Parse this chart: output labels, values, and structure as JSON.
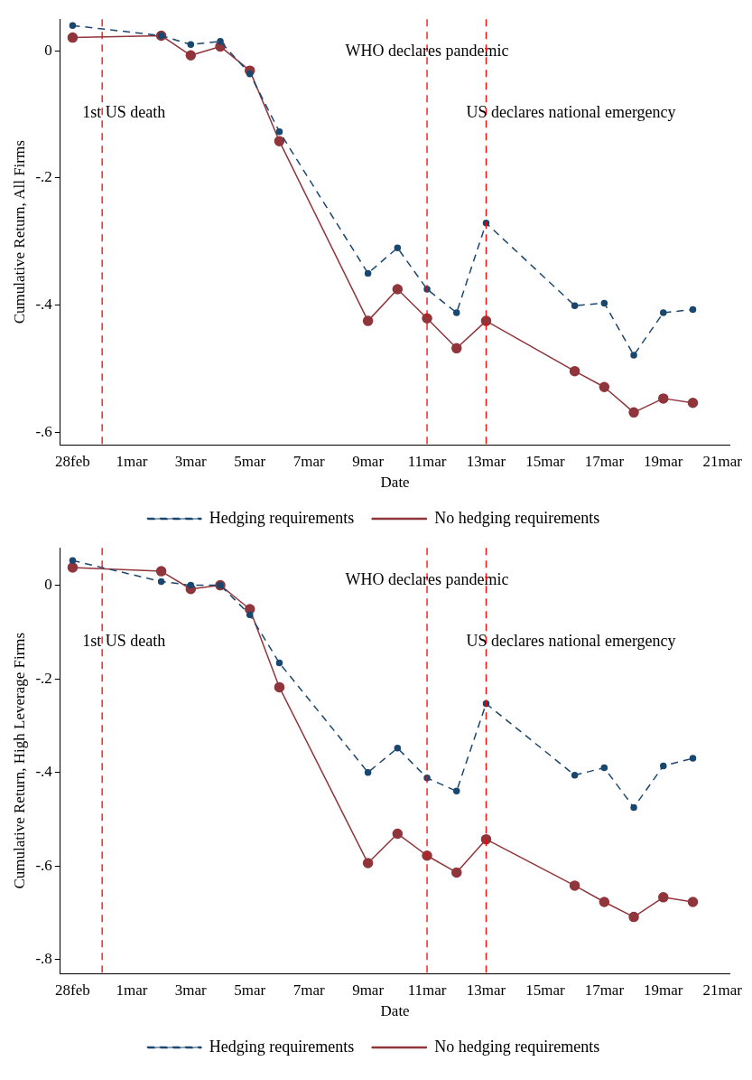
{
  "chart_data": [
    {
      "type": "line",
      "xlabel": "Date",
      "ylabel": "Cumulative Return, All Firms",
      "legend": "bottom",
      "marker": "circle",
      "grid": false,
      "x": [
        "--02-28",
        "--03-02",
        "--03-03",
        "--03-04",
        "--03-05",
        "--03-06",
        "--03-09",
        "--03-10",
        "--03-11",
        "--03-12",
        "--03-13",
        "--03-16",
        "--03-17",
        "--03-18",
        "--03-19",
        "--03-20"
      ],
      "xlim": [
        "--02-27T14:00",
        "--03-21T06:00"
      ],
      "xticks": [
        {
          "value": "--02-28",
          "label": "28feb"
        },
        {
          "value": "--03-01",
          "label": "1mar"
        },
        {
          "value": "--03-03",
          "label": "3mar"
        },
        {
          "value": "--03-05",
          "label": "5mar"
        },
        {
          "value": "--03-07",
          "label": "7mar"
        },
        {
          "value": "--03-09",
          "label": "9mar"
        },
        {
          "value": "--03-11",
          "label": "11mar"
        },
        {
          "value": "--03-13",
          "label": "13mar"
        },
        {
          "value": "--03-15",
          "label": "15mar"
        },
        {
          "value": "--03-17",
          "label": "17mar"
        },
        {
          "value": "--03-19",
          "label": "19mar"
        },
        {
          "value": "--03-21",
          "label": "21mar"
        }
      ],
      "ylim": [
        -0.62,
        0.05
      ],
      "yticks": [
        {
          "value": -0.6,
          "label": "-.6"
        },
        {
          "value": -0.4,
          "label": "-.4"
        },
        {
          "value": -0.2,
          "label": "-.2"
        },
        0
      ],
      "ref_lines": [
        {
          "axis": "x",
          "value": "--02-29",
          "label": "1st US death",
          "color": "#ff0000",
          "line_style": "dashed"
        },
        {
          "axis": "x",
          "value": "--03-11",
          "label": "WHO declares pandemic",
          "color": "#ff0000",
          "line_style": "dashed"
        },
        {
          "axis": "x",
          "value": "--03-13",
          "label": "US declares national emergency",
          "color": "#ff0000",
          "line_style": "dashed"
        }
      ],
      "series": [
        {
          "name": "Hedging requirements",
          "color": "#1a476f",
          "line_style": "dashed",
          "values": [
            0.04,
            0.024,
            0.01,
            0.015,
            -0.036,
            -0.127,
            -0.35,
            -0.31,
            -0.375,
            -0.412,
            -0.271,
            -0.401,
            -0.397,
            -0.479,
            -0.412,
            -0.407
          ]
        },
        {
          "name": "No hedging requirements",
          "color": "#90353b",
          "line_style": "solid",
          "values": [
            0.021,
            0.024,
            -0.007,
            0.007,
            -0.031,
            -0.142,
            -0.425,
            -0.375,
            -0.421,
            -0.468,
            -0.425,
            -0.504,
            -0.529,
            -0.569,
            -0.547,
            -0.554
          ]
        }
      ]
    },
    {
      "type": "line",
      "xlabel": "Date",
      "ylabel": "Cumulative Return, High Leverage Firms",
      "legend": "bottom",
      "marker": "circle",
      "grid": false,
      "x": [
        "--02-28",
        "--03-02",
        "--03-03",
        "--03-04",
        "--03-05",
        "--03-06",
        "--03-09",
        "--03-10",
        "--03-11",
        "--03-12",
        "--03-13",
        "--03-16",
        "--03-17",
        "--03-18",
        "--03-19",
        "--03-20"
      ],
      "xlim": [
        "--02-27T14:00",
        "--03-21T06:00"
      ],
      "xticks": [
        {
          "value": "--02-28",
          "label": "28feb"
        },
        {
          "value": "--03-01",
          "label": "1mar"
        },
        {
          "value": "--03-03",
          "label": "3mar"
        },
        {
          "value": "--03-05",
          "label": "5mar"
        },
        {
          "value": "--03-07",
          "label": "7mar"
        },
        {
          "value": "--03-09",
          "label": "9mar"
        },
        {
          "value": "--03-11",
          "label": "11mar"
        },
        {
          "value": "--03-13",
          "label": "13mar"
        },
        {
          "value": "--03-15",
          "label": "15mar"
        },
        {
          "value": "--03-17",
          "label": "17mar"
        },
        {
          "value": "--03-19",
          "label": "19mar"
        },
        {
          "value": "--03-21",
          "label": "21mar"
        }
      ],
      "ylim": [
        -0.83,
        0.08
      ],
      "yticks": [
        {
          "value": -0.8,
          "label": "-.8"
        },
        {
          "value": -0.6,
          "label": "-.6"
        },
        {
          "value": -0.4,
          "label": "-.4"
        },
        {
          "value": -0.2,
          "label": "-.2"
        },
        0
      ],
      "ref_lines": [
        {
          "axis": "x",
          "value": "--02-29",
          "label": "1st US death",
          "color": "#ff0000",
          "line_style": "dashed"
        },
        {
          "axis": "x",
          "value": "--03-11",
          "label": "WHO declares pandemic",
          "color": "#ff0000",
          "line_style": "dashed"
        },
        {
          "axis": "x",
          "value": "--03-13",
          "label": "US declares national emergency",
          "color": "#ff0000",
          "line_style": "dashed"
        }
      ],
      "series": [
        {
          "name": "Hedging requirements",
          "color": "#1a476f",
          "line_style": "dashed",
          "values": [
            0.053,
            0.008,
            0,
            0,
            -0.063,
            -0.166,
            -0.4,
            -0.348,
            -0.412,
            -0.44,
            -0.253,
            -0.406,
            -0.39,
            -0.475,
            -0.386,
            -0.37
          ]
        },
        {
          "name": "No hedging requirements",
          "color": "#90353b",
          "line_style": "solid",
          "values": [
            0.038,
            0.03,
            -0.008,
            0,
            -0.051,
            -0.218,
            -0.594,
            -0.531,
            -0.578,
            -0.614,
            -0.543,
            -0.642,
            -0.677,
            -0.709,
            -0.667,
            -0.677
          ]
        }
      ]
    }
  ]
}
